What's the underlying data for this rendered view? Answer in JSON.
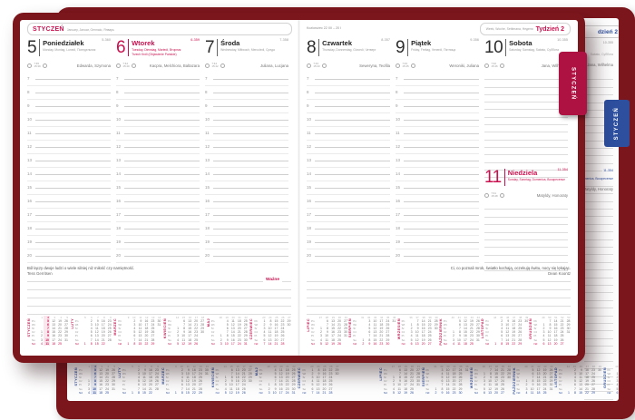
{
  "colors": {
    "cover": "#7c161d",
    "accent_red": "#c8104e",
    "tab_red": "#ad1243",
    "accent_blue": "#2d4f9e"
  },
  "tabs": {
    "foreground": "STYCZEŃ",
    "background": "STYCZEŃ"
  },
  "hours": [
    "7",
    "8",
    "9",
    "10",
    "11",
    "12",
    "13",
    "14",
    "15",
    "16",
    "17",
    "18",
    "19",
    "20"
  ],
  "left_page": {
    "month": "STYCZEŃ",
    "month_translations": "January, Januar, Gennaio, Январь",
    "days": [
      {
        "number": "5",
        "doy": "5-360",
        "name": "Poniedziałek",
        "translations": "Monday, Montag, Lunedì, Понедельник",
        "holiday": "",
        "sunrise": "7:45",
        "sunset": "15:39",
        "namedays": "Edwarda, Szymona"
      },
      {
        "number": "6",
        "doy": "6-359",
        "name": "Wtorek",
        "translations": "Tuesday, Dienstag, Martedì, Вторник",
        "holiday": "Trzech Króli (Objawienie Pańskie)",
        "sunrise": "7:44",
        "sunset": "15:40",
        "namedays": "Kacpra, Melchiora, Baltazara"
      },
      {
        "number": "7",
        "doy": "7-358",
        "name": "Środa",
        "translations": "Wednesday, Mittwoch, Mercoledì, Среда",
        "holiday": "",
        "sunrise": "7:44",
        "sunset": "15:42",
        "namedays": "Juliana, Lucjana"
      }
    ],
    "quote": {
      "text": "Ból łączy dwoje ludzi o wiele silniej niż miłość czy namiętność.",
      "author": "Tess Gerritsen"
    },
    "important_label": "Ważne"
  },
  "right_page": {
    "zodiac": "Koziorożec 22 XII – 20 I",
    "week_translations": "Week, Woche, Settimana, Неделя",
    "week_label": "Tydzień 2",
    "days": [
      {
        "number": "8",
        "doy": "8-357",
        "name": "Czwartek",
        "translations": "Thursday, Donnerstag, Giovedì, Четверг",
        "sunrise": "7:43",
        "sunset": "15:43",
        "namedays": "Seweryna, Teofila"
      },
      {
        "number": "9",
        "doy": "9-356",
        "name": "Piątek",
        "translations": "Friday, Freitag, Venerdì, Пятница",
        "sunrise": "7:43",
        "sunset": "15:45",
        "namedays": "Weroniki, Juliana"
      },
      {
        "number": "10",
        "doy": "10-355",
        "name": "Sobota",
        "translations": "Saturday, Samstag, Sabato, Суббота",
        "sunrise": "7:42",
        "sunset": "15:46",
        "namedays": "Jana, Wilhelma"
      },
      {
        "number": "11",
        "doy": "11-354",
        "name": "Niedziela",
        "translations": "Sunday, Sonntag, Domenica, Воскресенье",
        "sunrise": "7:41",
        "sunset": "15:48",
        "namedays": "Matyldy, Honoraty"
      }
    ],
    "quote": {
      "text": "Ci, co poznali mrok, światło kochają, oczekują świtu, nocy się lękając.",
      "author": "Dean Koontz"
    }
  },
  "background_page": {
    "week_label_clipped": "dzień 2",
    "doy_sat": "10-355",
    "subtitle_sat": "Sabato, Суббота",
    "namedays_sat": "Jana, Wilhelma",
    "doy_sun": "11-354",
    "subtitle_sun": "Domenica, Воскресенье",
    "namedays_sun": "Matyldy, Honoraty"
  },
  "mini_calendars": {
    "day_abbrs": [
      "Pn",
      "Wt",
      "Śr",
      "Cz",
      "Pt",
      "So",
      "Nd"
    ],
    "months": [
      {
        "name": "STYCZEŃ",
        "weeks": [
          "1",
          "2",
          "3",
          "4",
          "5"
        ],
        "hl": 1,
        "rows": [
          [
            "",
            "5",
            "12",
            "19",
            "26"
          ],
          [
            "",
            "6",
            "13",
            "20",
            "27"
          ],
          [
            "",
            "7",
            "14",
            "21",
            "28"
          ],
          [
            "1",
            "8",
            "15",
            "22",
            "29"
          ],
          [
            "2",
            "9",
            "16",
            "23",
            "30"
          ],
          [
            "3",
            "10",
            "17",
            "24",
            "31"
          ],
          [
            "4",
            "11",
            "18",
            "25",
            ""
          ]
        ]
      },
      {
        "name": "LUTY",
        "weeks": [
          "5",
          "6",
          "7",
          "8",
          "9"
        ],
        "hl": -1,
        "rows": [
          [
            "",
            "2",
            "9",
            "16",
            "23"
          ],
          [
            "",
            "3",
            "10",
            "17",
            "24"
          ],
          [
            "",
            "4",
            "11",
            "18",
            "25"
          ],
          [
            "",
            "5",
            "12",
            "19",
            "26"
          ],
          [
            "",
            "6",
            "13",
            "20",
            "27"
          ],
          [
            "",
            "7",
            "14",
            "21",
            "28"
          ],
          [
            "1",
            "8",
            "15",
            "22",
            ""
          ]
        ]
      },
      {
        "name": "MARZEC",
        "weeks": [
          "9",
          "10",
          "11",
          "12",
          "13",
          "14"
        ],
        "hl": -1,
        "rows": [
          [
            "",
            "2",
            "9",
            "16",
            "23",
            "30"
          ],
          [
            "",
            "3",
            "10",
            "17",
            "24",
            "31"
          ],
          [
            "",
            "4",
            "11",
            "18",
            "25",
            ""
          ],
          [
            "",
            "5",
            "12",
            "19",
            "26",
            ""
          ],
          [
            "",
            "6",
            "13",
            "20",
            "27",
            ""
          ],
          [
            "",
            "7",
            "14",
            "21",
            "28",
            ""
          ],
          [
            "1",
            "8",
            "15",
            "22",
            "29",
            ""
          ]
        ]
      },
      {
        "name": "KWIECIEŃ",
        "weeks": [
          "14",
          "15",
          "16",
          "17",
          "18"
        ],
        "hl": -1,
        "rows": [
          [
            "",
            "6",
            "13",
            "20",
            "27"
          ],
          [
            "",
            "7",
            "14",
            "21",
            "28"
          ],
          [
            "1",
            "8",
            "15",
            "22",
            "29"
          ],
          [
            "2",
            "9",
            "16",
            "23",
            "30"
          ],
          [
            "3",
            "10",
            "17",
            "24",
            ""
          ],
          [
            "4",
            "11",
            "18",
            "25",
            ""
          ],
          [
            "5",
            "12",
            "19",
            "26",
            ""
          ]
        ]
      },
      {
        "name": "MAJ",
        "weeks": [
          "18",
          "19",
          "20",
          "21",
          "22"
        ],
        "hl": -1,
        "rows": [
          [
            "",
            "4",
            "11",
            "18",
            "25"
          ],
          [
            "",
            "5",
            "12",
            "19",
            "26"
          ],
          [
            "",
            "6",
            "13",
            "20",
            "27"
          ],
          [
            "",
            "7",
            "14",
            "21",
            "28"
          ],
          [
            "1",
            "8",
            "15",
            "22",
            "29"
          ],
          [
            "2",
            "9",
            "16",
            "23",
            "30"
          ],
          [
            "3",
            "10",
            "17",
            "24",
            "31"
          ]
        ]
      },
      {
        "name": "CZERWIEC",
        "weeks": [
          "23",
          "24",
          "25",
          "26",
          "27"
        ],
        "hl": -1,
        "rows": [
          [
            "1",
            "8",
            "15",
            "22",
            "29"
          ],
          [
            "2",
            "9",
            "16",
            "23",
            "30"
          ],
          [
            "3",
            "10",
            "17",
            "24",
            ""
          ],
          [
            "4",
            "11",
            "18",
            "25",
            ""
          ],
          [
            "5",
            "12",
            "19",
            "26",
            ""
          ],
          [
            "6",
            "13",
            "20",
            "27",
            ""
          ],
          [
            "7",
            "14",
            "21",
            "28",
            ""
          ]
        ]
      },
      {
        "name": "LIPIEC",
        "weeks": [
          "27",
          "28",
          "29",
          "30",
          "31"
        ],
        "hl": -1,
        "rows": [
          [
            "",
            "6",
            "13",
            "20",
            "27"
          ],
          [
            "",
            "7",
            "14",
            "21",
            "28"
          ],
          [
            "1",
            "8",
            "15",
            "22",
            "29"
          ],
          [
            "2",
            "9",
            "16",
            "23",
            "30"
          ],
          [
            "3",
            "10",
            "17",
            "24",
            "31"
          ],
          [
            "4",
            "11",
            "18",
            "25",
            ""
          ],
          [
            "5",
            "12",
            "19",
            "26",
            ""
          ]
        ]
      },
      {
        "name": "SIERPIEŃ",
        "weeks": [
          "31",
          "32",
          "33",
          "34",
          "35",
          "36"
        ],
        "hl": -1,
        "rows": [
          [
            "",
            "3",
            "10",
            "17",
            "24",
            "31"
          ],
          [
            "",
            "4",
            "11",
            "18",
            "25",
            ""
          ],
          [
            "",
            "5",
            "12",
            "19",
            "26",
            ""
          ],
          [
            "",
            "6",
            "13",
            "20",
            "27",
            ""
          ],
          [
            "",
            "7",
            "14",
            "21",
            "28",
            ""
          ],
          [
            "1",
            "8",
            "15",
            "22",
            "29",
            ""
          ],
          [
            "2",
            "9",
            "16",
            "23",
            "30",
            ""
          ]
        ]
      },
      {
        "name": "WRZESIEŃ",
        "weeks": [
          "36",
          "37",
          "38",
          "39",
          "40"
        ],
        "hl": -1,
        "rows": [
          [
            "",
            "7",
            "14",
            "21",
            "28"
          ],
          [
            "1",
            "8",
            "15",
            "22",
            "29"
          ],
          [
            "2",
            "9",
            "16",
            "23",
            "30"
          ],
          [
            "3",
            "10",
            "17",
            "24",
            ""
          ],
          [
            "4",
            "11",
            "18",
            "25",
            ""
          ],
          [
            "5",
            "12",
            "19",
            "26",
            ""
          ],
          [
            "6",
            "13",
            "20",
            "27",
            ""
          ]
        ]
      },
      {
        "name": "PAŹDZIERNIK",
        "weeks": [
          "40",
          "41",
          "42",
          "43",
          "44"
        ],
        "hl": -1,
        "rows": [
          [
            "",
            "5",
            "12",
            "19",
            "26"
          ],
          [
            "",
            "6",
            "13",
            "20",
            "27"
          ],
          [
            "",
            "7",
            "14",
            "21",
            "28"
          ],
          [
            "1",
            "8",
            "15",
            "22",
            "29"
          ],
          [
            "2",
            "9",
            "16",
            "23",
            "30"
          ],
          [
            "3",
            "10",
            "17",
            "24",
            "31"
          ],
          [
            "4",
            "11",
            "18",
            "25",
            ""
          ]
        ]
      },
      {
        "name": "LISTOPAD",
        "weeks": [
          "44",
          "45",
          "46",
          "47",
          "48",
          "49"
        ],
        "hl": -1,
        "rows": [
          [
            "",
            "2",
            "9",
            "16",
            "23",
            "30"
          ],
          [
            "",
            "3",
            "10",
            "17",
            "24",
            ""
          ],
          [
            "",
            "4",
            "11",
            "18",
            "25",
            ""
          ],
          [
            "",
            "5",
            "12",
            "19",
            "26",
            ""
          ],
          [
            "",
            "6",
            "13",
            "20",
            "27",
            ""
          ],
          [
            "",
            "7",
            "14",
            "21",
            "28",
            ""
          ],
          [
            "1",
            "8",
            "15",
            "22",
            "29",
            ""
          ]
        ]
      },
      {
        "name": "GRUDZIEŃ",
        "weeks": [
          "49",
          "50",
          "51",
          "52",
          "53"
        ],
        "hl": -1,
        "rows": [
          [
            "",
            "7",
            "14",
            "21",
            "28"
          ],
          [
            "1",
            "8",
            "15",
            "22",
            "29"
          ],
          [
            "2",
            "9",
            "16",
            "23",
            "30"
          ],
          [
            "3",
            "10",
            "17",
            "24",
            "31"
          ],
          [
            "4",
            "11",
            "18",
            "25",
            ""
          ],
          [
            "5",
            "12",
            "19",
            "26",
            ""
          ],
          [
            "6",
            "13",
            "20",
            "27",
            ""
          ]
        ]
      }
    ]
  }
}
